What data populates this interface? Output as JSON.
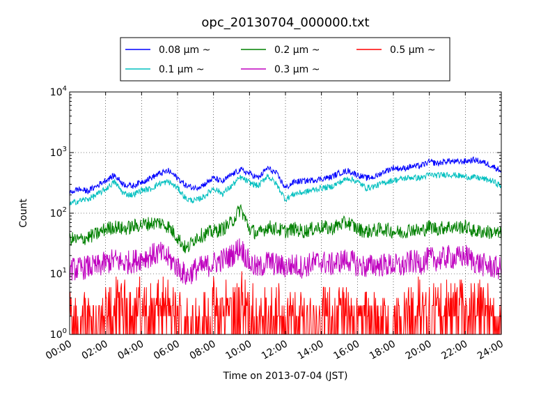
{
  "chart_data": {
    "type": "line",
    "title": "opc_20130704_000000.txt",
    "xlabel": "Time on 2013-07-04 (JST)",
    "ylabel": "Count",
    "y_scale": "log",
    "ylim": [
      1,
      10000
    ],
    "xlim": [
      "00:00",
      "24:00"
    ],
    "x_ticks": [
      "00:00",
      "02:00",
      "04:00",
      "06:00",
      "08:00",
      "10:00",
      "12:00",
      "14:00",
      "16:00",
      "18:00",
      "20:00",
      "22:00",
      "24:00"
    ],
    "y_ticks": [
      {
        "base": "10",
        "exp": "0",
        "value": 1
      },
      {
        "base": "10",
        "exp": "1",
        "value": 10
      },
      {
        "base": "10",
        "exp": "2",
        "value": 100
      },
      {
        "base": "10",
        "exp": "3",
        "value": 1000
      },
      {
        "base": "10",
        "exp": "4",
        "value": 10000
      }
    ],
    "grid": true,
    "legend_position": "top-center",
    "x_hours": [
      0,
      0.5,
      1,
      1.5,
      2,
      2.5,
      3,
      3.5,
      4,
      4.5,
      5,
      5.5,
      6,
      6.5,
      7,
      7.5,
      8,
      8.5,
      9,
      9.5,
      10,
      10.5,
      11,
      11.5,
      12,
      12.5,
      13,
      13.5,
      14,
      14.5,
      15,
      15.5,
      16,
      16.5,
      17,
      17.5,
      18,
      18.5,
      19,
      19.5,
      20,
      20.5,
      21,
      21.5,
      22,
      22.5,
      23,
      23.5,
      24
    ],
    "series": [
      {
        "name": "0.08 μm ~",
        "color": "#0000ff",
        "noise": 0.05,
        "values": [
          220,
          250,
          230,
          280,
          350,
          420,
          300,
          280,
          330,
          380,
          450,
          500,
          380,
          280,
          260,
          300,
          380,
          330,
          430,
          520,
          450,
          380,
          560,
          450,
          260,
          330,
          340,
          350,
          370,
          390,
          460,
          500,
          430,
          380,
          400,
          490,
          560,
          540,
          590,
          600,
          700,
          660,
          730,
          700,
          720,
          760,
          690,
          600,
          500
        ]
      },
      {
        "name": "0.1 μm ~",
        "color": "#00bfbf",
        "noise": 0.05,
        "values": [
          140,
          160,
          170,
          200,
          250,
          330,
          210,
          200,
          240,
          250,
          310,
          330,
          260,
          170,
          160,
          190,
          260,
          210,
          280,
          390,
          320,
          280,
          420,
          300,
          170,
          210,
          220,
          240,
          260,
          270,
          320,
          380,
          330,
          260,
          280,
          320,
          350,
          370,
          390,
          380,
          430,
          420,
          440,
          420,
          400,
          390,
          370,
          340,
          280
        ]
      },
      {
        "name": "0.2 μm ~",
        "color": "#008000",
        "noise": 0.12,
        "values": [
          38,
          36,
          40,
          45,
          55,
          60,
          55,
          60,
          65,
          68,
          70,
          60,
          40,
          25,
          40,
          45,
          50,
          55,
          70,
          120,
          55,
          45,
          60,
          55,
          50,
          55,
          50,
          55,
          60,
          55,
          65,
          70,
          55,
          50,
          52,
          55,
          50,
          48,
          55,
          50,
          60,
          55,
          60,
          58,
          60,
          50,
          50,
          48,
          45
        ]
      },
      {
        "name": "0.3 μm ~",
        "color": "#bf00bf",
        "noise": 0.2,
        "values": [
          12,
          12,
          13,
          13,
          15,
          17,
          15,
          16,
          18,
          20,
          22,
          18,
          13,
          9,
          12,
          13,
          15,
          17,
          20,
          28,
          15,
          12,
          16,
          14,
          13,
          14,
          13,
          15,
          16,
          14,
          16,
          17,
          14,
          13,
          14,
          14,
          14,
          13,
          16,
          15,
          18,
          17,
          19,
          18,
          20,
          16,
          14,
          13,
          12
        ]
      },
      {
        "name": "0.5 μm ~",
        "color": "#ff0000",
        "noise": 0.35,
        "values": [
          2,
          2,
          2,
          2,
          2,
          3,
          3,
          3,
          3,
          3,
          3,
          3,
          2,
          2,
          2,
          2,
          3,
          3,
          3,
          4,
          3,
          2,
          3,
          3,
          2,
          2,
          2,
          2,
          3,
          2,
          3,
          3,
          2,
          2,
          2,
          2,
          2,
          2,
          3,
          3,
          3,
          3,
          3,
          3,
          3,
          3,
          3,
          2,
          2
        ]
      }
    ]
  }
}
